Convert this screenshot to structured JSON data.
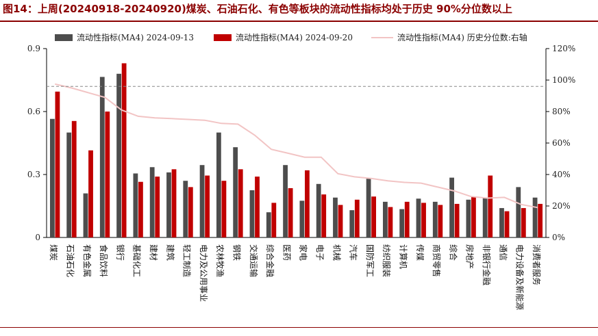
{
  "title": "图14：上周(20240918-20240920)煤炭、石油石化、有色等板块的流动性指标均处于历史 90%分位数以上",
  "colors": {
    "title": "#8b0000",
    "series_a": "#4d4d4d",
    "series_b": "#c00000",
    "series_c": "#f2c4c4",
    "ref_line": "#888888",
    "axis": "#000000"
  },
  "chart_data": {
    "type": "bar",
    "categories": [
      "煤炭",
      "石油石化",
      "有色金属",
      "食品饮料",
      "银行",
      "基础化工",
      "建材",
      "建筑",
      "轻工制造",
      "电力及公用事业",
      "农林牧渔",
      "钢铁",
      "交通运输",
      "综合金融",
      "医药",
      "家电",
      "电子",
      "机械",
      "汽车",
      "国防军工",
      "纺织服装",
      "计算机",
      "传媒",
      "商贸零售",
      "综合",
      "房地产",
      "非银行金融",
      "通信",
      "电力设备及新能源",
      "消费者服务"
    ],
    "series": [
      {
        "name": "流动性指标(MA4) 2024-09-13",
        "type": "bar",
        "axis": "left",
        "values": [
          0.565,
          0.5,
          0.21,
          0.765,
          0.78,
          0.305,
          0.335,
          0.31,
          0.27,
          0.345,
          0.5,
          0.43,
          0.225,
          0.12,
          0.345,
          0.175,
          0.255,
          0.19,
          0.13,
          0.28,
          0.17,
          0.135,
          0.185,
          0.17,
          0.285,
          0.18,
          0.19,
          0.14,
          0.24,
          0.19
        ]
      },
      {
        "name": "流动性指标(MA4) 2024-09-20",
        "type": "bar",
        "axis": "left",
        "values": [
          0.695,
          0.555,
          0.415,
          0.6,
          0.83,
          0.265,
          0.29,
          0.325,
          0.24,
          0.295,
          0.27,
          0.325,
          0.29,
          0.165,
          0.235,
          0.32,
          0.205,
          0.155,
          0.18,
          0.195,
          0.145,
          0.17,
          0.165,
          0.155,
          0.16,
          0.195,
          0.295,
          0.125,
          0.14,
          0.16
        ]
      },
      {
        "name": "流动性指标(MA4) 历史分位数:右轴",
        "type": "line",
        "axis": "right",
        "values": [
          97.5,
          95,
          92,
          89,
          81,
          77,
          76,
          75.5,
          75,
          74.5,
          72.5,
          72,
          65,
          56,
          53.5,
          51,
          51,
          40.5,
          38.5,
          37.5,
          36,
          35,
          34.5,
          32,
          29.5,
          26,
          25,
          25.5,
          21,
          19
        ]
      }
    ],
    "reference_line": {
      "axis": "right",
      "value": 96
    },
    "y_left": {
      "ylim": [
        0,
        0.9
      ],
      "ticks": [
        "0",
        "0.3",
        "0.6",
        "0.9"
      ],
      "tick_values": [
        0,
        0.3,
        0.6,
        0.9
      ]
    },
    "y_right": {
      "ylim": [
        0,
        120
      ],
      "ticks": [
        "0%",
        "20%",
        "40%",
        "60%",
        "80%",
        "100%",
        "120%"
      ],
      "tick_values": [
        0,
        20,
        40,
        60,
        80,
        100,
        120
      ]
    },
    "legend_position": "top",
    "grid": false
  }
}
